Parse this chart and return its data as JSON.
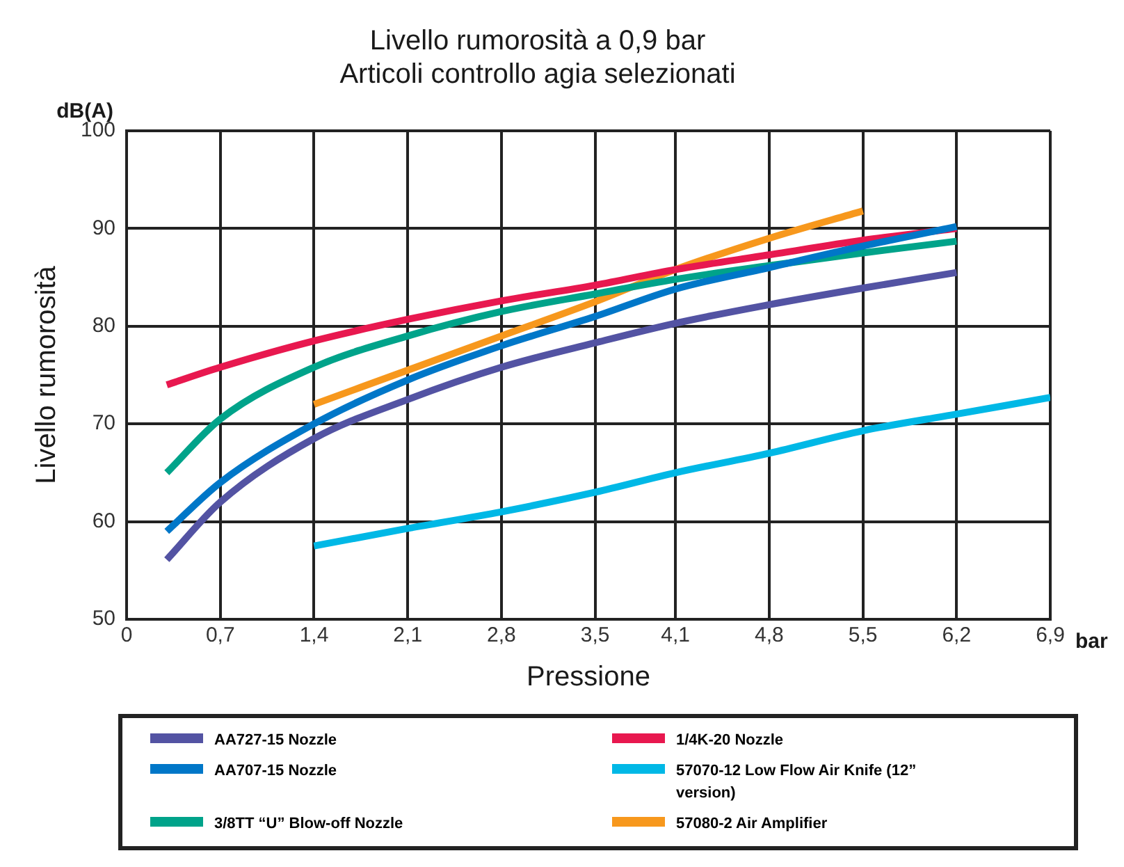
{
  "chart_data": {
    "type": "line",
    "title": "Livello rumorosità a 0,9 bar",
    "subtitle": "Articoli controllo agia selezionati",
    "xlabel": "Pressione",
    "ylabel": "Livello rumorosità",
    "annotations": [
      "dB(A)",
      "bar"
    ],
    "xlim": [
      0,
      6.9
    ],
    "xticks": [
      {
        "value": 0,
        "label": "0"
      },
      {
        "value": 0.7,
        "label": "0,7"
      },
      {
        "value": 1.4,
        "label": "1,4"
      },
      {
        "value": 2.1,
        "label": "2,1"
      },
      {
        "value": 2.8,
        "label": "2,8"
      },
      {
        "value": 3.5,
        "label": "3,5"
      },
      {
        "value": 4.1,
        "label": "4,1"
      },
      {
        "value": 4.8,
        "label": "4,8"
      },
      {
        "value": 5.5,
        "label": "5,5"
      },
      {
        "value": 6.2,
        "label": "6,2"
      },
      {
        "value": 6.9,
        "label": "6,9"
      }
    ],
    "ylim": [
      50,
      100
    ],
    "yticks": [
      50,
      60,
      70,
      80,
      90,
      100
    ],
    "grid": true,
    "legend": "bottom",
    "marker": "none",
    "line_style": "solid",
    "series": [
      {
        "name": "AA727-15 Nozzle",
        "color": "#5353a3",
        "x": [
          0.3,
          0.7,
          1.4,
          2.1,
          2.8,
          3.5,
          4.1,
          4.8,
          5.5,
          6.2
        ],
        "values": [
          56.1,
          62,
          68.5,
          72.5,
          75.8,
          78.3,
          80.3,
          82.2,
          83.9,
          85.5
        ]
      },
      {
        "name": "AA707-15 Nozzle",
        "color": "#0077c8",
        "x": [
          0.3,
          0.7,
          1.4,
          2.1,
          2.8,
          3.5,
          4.1,
          4.8,
          5.5,
          6.2
        ],
        "values": [
          59,
          64,
          70,
          74.5,
          78,
          81,
          83.8,
          86,
          88.2,
          90.2
        ]
      },
      {
        "name": "3/8TT “U” Blow-off Nozzle",
        "color": "#00a38a",
        "x": [
          0.3,
          0.7,
          1.4,
          2.1,
          2.8,
          3.5,
          4.1,
          4.8,
          5.5,
          6.2
        ],
        "values": [
          65,
          70.5,
          75.8,
          79,
          81.5,
          83.3,
          84.8,
          86.2,
          87.5,
          88.7
        ]
      },
      {
        "name": "1/4K-20 Nozzle",
        "color": "#e8184f",
        "x": [
          0.3,
          0.7,
          1.4,
          2.1,
          2.8,
          3.5,
          4.1,
          4.8,
          5.5,
          6.2
        ],
        "values": [
          74,
          75.8,
          78.5,
          80.7,
          82.6,
          84.2,
          85.8,
          87.3,
          88.8,
          90
        ]
      },
      {
        "name": "57070-12 Low Flow Air Knife (12” version)",
        "color": "#00b8e6",
        "x": [
          1.4,
          2.1,
          2.8,
          3.5,
          4.1,
          4.8,
          5.5,
          6.2,
          6.9
        ],
        "values": [
          57.5,
          59.3,
          61,
          63,
          65,
          67,
          69.3,
          71,
          72.7
        ]
      },
      {
        "name": "57080-2 Air Amplifier",
        "color": "#f7981d",
        "x": [
          1.4,
          2.1,
          2.8,
          3.5,
          4.1,
          4.8,
          5.5
        ],
        "values": [
          72,
          75.5,
          79,
          82.5,
          85.8,
          89,
          91.8
        ]
      }
    ]
  }
}
